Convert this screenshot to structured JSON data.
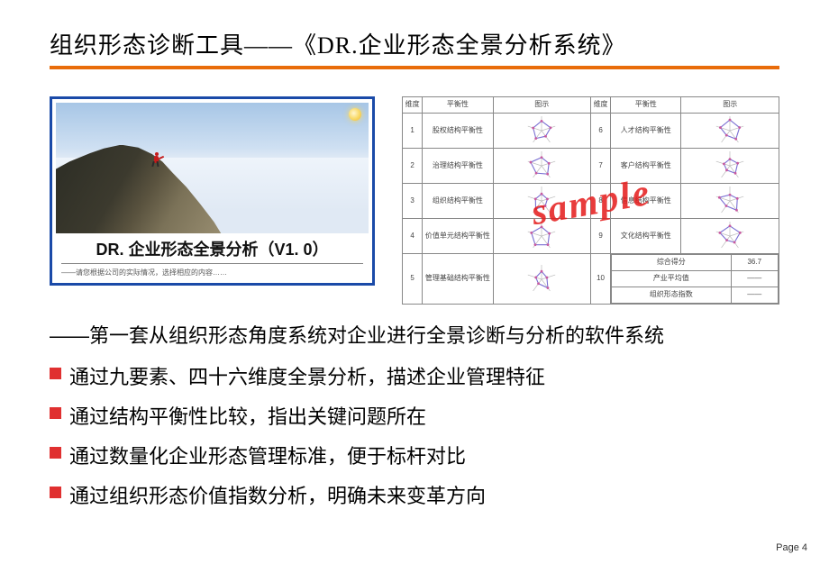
{
  "title": "组织形态诊断工具——《DR.企业形态全景分析系统》",
  "accent_color": "#e96c0a",
  "left_card": {
    "border_color": "#1a4aa8",
    "caption": "DR. 企业形态全景分析（V1. 0）",
    "subcaption": "——请您根据公司的实际情况，选择相应的内容……"
  },
  "table": {
    "headers": [
      "维度",
      "平衡性",
      "图示",
      "维度",
      "平衡性",
      "图示"
    ],
    "rows": [
      {
        "left_idx": "1",
        "left_label": "股权结构平衡性",
        "right_idx": "6",
        "right_label": "人才结构平衡性"
      },
      {
        "left_idx": "2",
        "left_label": "治理结构平衡性",
        "right_idx": "7",
        "right_label": "客户结构平衡性"
      },
      {
        "left_idx": "3",
        "left_label": "组织结构平衡性",
        "right_idx": "8",
        "right_label": "信息结构平衡性"
      },
      {
        "left_idx": "4",
        "left_label": "价值单元结构平衡性",
        "right_idx": "9",
        "right_label": "文化结构平衡性"
      }
    ],
    "summary_row": {
      "left_idx": "5",
      "left_label": "管理基础结构平衡性",
      "right_idx": "10",
      "right_labels": [
        "综合得分",
        "产业平均值",
        "组织形态指数"
      ],
      "right_values": [
        "36.7",
        "——",
        "——"
      ]
    },
    "radar_style": {
      "line_color": "#7a6fd3",
      "marker_color": "#c85aa0",
      "axis_color": "#bbbbbb"
    },
    "watermark": "sample"
  },
  "lead_line": "——第一套从组织形态角度系统对企业进行全景诊断与分析的软件系统",
  "bullets": [
    "通过九要素、四十六维度全景分析，描述企业管理特征",
    "通过结构平衡性比较，指出关键问题所在",
    "通过数量化企业形态管理标准，便于标杆对比",
    "通过组织形态价值指数分析，明确未来变革方向"
  ],
  "bullet_color": "#e03030",
  "footer": "Page 4"
}
